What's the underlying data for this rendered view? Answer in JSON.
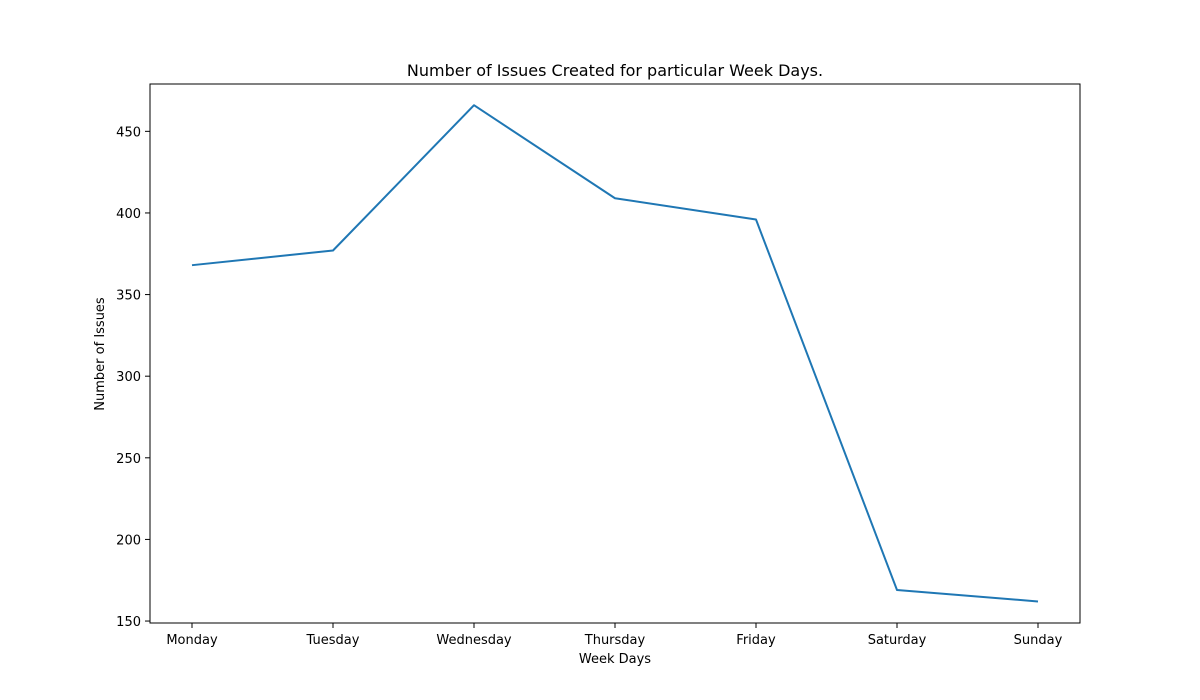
{
  "chart_data": {
    "type": "line",
    "title": "Number of Issues Created for particular Week Days.",
    "xlabel": "Week Days",
    "ylabel": "Number of Issues",
    "categories": [
      "Monday",
      "Tuesday",
      "Wednesday",
      "Thursday",
      "Friday",
      "Saturday",
      "Sunday"
    ],
    "series": [
      {
        "values": [
          368,
          377,
          466,
          409,
          396,
          169,
          162
        ],
        "color": "#1f77b4"
      }
    ],
    "ylim": [
      148.8,
      479.0
    ],
    "yticks": [
      150,
      200,
      250,
      300,
      350,
      400,
      450
    ],
    "grid": false,
    "legend": "none"
  }
}
